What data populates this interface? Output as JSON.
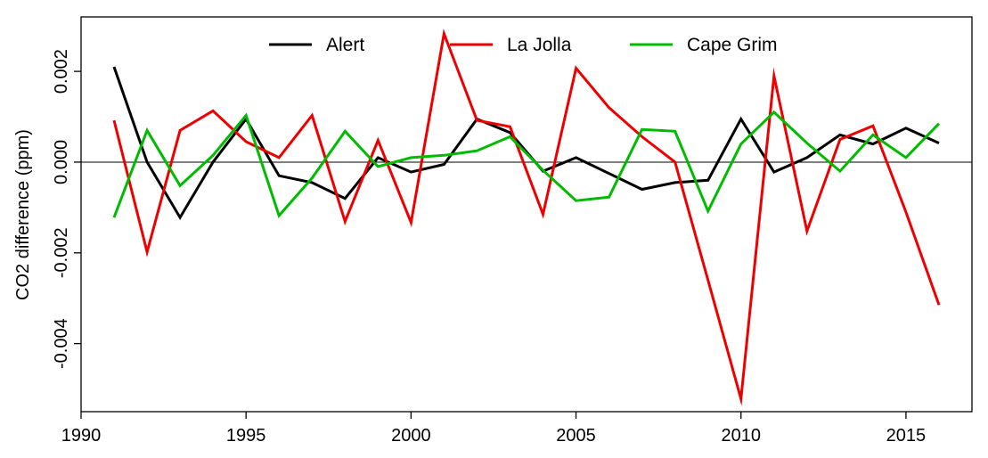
{
  "chart_data": {
    "type": "line",
    "ylabel": "CO2 difference (ppm)",
    "xlabel": "",
    "xlim": [
      1990,
      2017
    ],
    "ylim": [
      -0.0055,
      0.0032
    ],
    "x_ticks": [
      1990,
      1995,
      2000,
      2005,
      2010,
      2015
    ],
    "x_tick_labels": [
      "1990",
      "1995",
      "2000",
      "2005",
      "2010",
      "2015"
    ],
    "y_ticks": [
      -0.004,
      -0.002,
      0.0,
      0.002
    ],
    "y_tick_labels": [
      "-0.004",
      "-0.002",
      "0.000",
      "0.002"
    ],
    "reference_line": 0,
    "grid": false,
    "legend_position": "top",
    "x": [
      1991,
      1992,
      1993,
      1994,
      1995,
      1996,
      1997,
      1998,
      1999,
      2000,
      2001,
      2002,
      2003,
      2004,
      2005,
      2006,
      2007,
      2008,
      2009,
      2010,
      2011,
      2012,
      2013,
      2014,
      2015,
      2016
    ],
    "series": [
      {
        "name": "Alert",
        "color": "#000000",
        "values": [
          0.0021,
          0.0,
          -0.00122,
          0.0,
          0.00095,
          -0.0003,
          -0.00045,
          -0.0008,
          0.0001,
          -0.00022,
          -5e-05,
          0.00095,
          0.00065,
          -0.0002,
          0.0001,
          -0.00025,
          -0.0006,
          -0.00045,
          -0.0004,
          0.00095,
          -0.00022,
          0.0001,
          0.0006,
          0.0004,
          0.00075,
          0.00042
        ]
      },
      {
        "name": "La Jolla",
        "color": "#ee0000",
        "values": [
          0.00092,
          -0.00198,
          0.0007,
          0.00113,
          0.00045,
          0.0001,
          0.00103,
          -0.00131,
          0.00048,
          -0.00133,
          0.00283,
          0.00092,
          0.00078,
          -0.00115,
          0.00207,
          0.0012,
          0.00056,
          0.0,
          -0.0026,
          -0.00522,
          0.0019,
          -0.00152,
          0.0005,
          0.0008,
          -0.0011,
          -0.00315
        ]
      },
      {
        "name": "Cape Grim",
        "color": "#00bb00",
        "values": [
          -0.00122,
          0.0007,
          -0.00052,
          0.00015,
          0.00103,
          -0.00118,
          -0.00035,
          0.00068,
          -0.0001,
          0.0001,
          0.00015,
          0.00025,
          0.00056,
          -0.00018,
          -0.00085,
          -0.00077,
          0.00072,
          0.00068,
          -0.00108,
          0.0004,
          0.0011,
          0.00042,
          -0.0002,
          0.0006,
          0.0001,
          0.00085
        ]
      }
    ]
  }
}
